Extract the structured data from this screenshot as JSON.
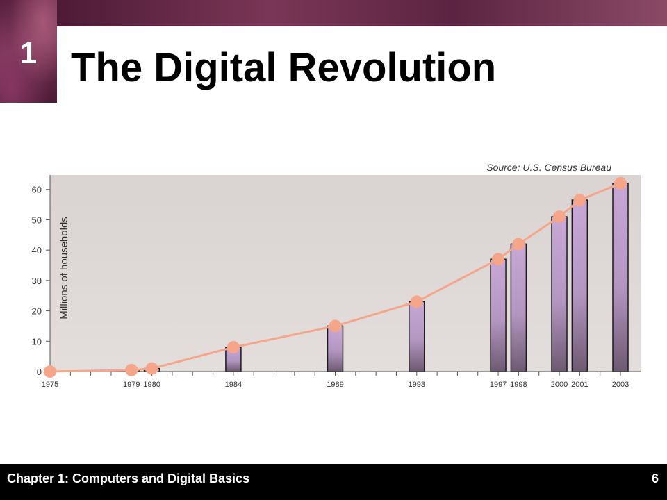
{
  "slide": {
    "chapter_number": "1",
    "title": "The Digital Revolution",
    "footer": "Chapter 1: Computers and Digital Basics",
    "page_number": "6"
  },
  "colors": {
    "bar": "#b79bc4",
    "line": "#f5a58a",
    "plot_bg": "#ddd6d4"
  },
  "chart_data": {
    "type": "bar",
    "source": "Source: U.S. Census Bureau",
    "ylabel": "Millions of households",
    "xlabel": "",
    "ylim": [
      0,
      62
    ],
    "yticks": [
      0,
      10,
      20,
      30,
      40,
      50,
      60
    ],
    "xlim": [
      1975,
      2003
    ],
    "categories": [
      "1975",
      "1979",
      "1980",
      "1984",
      "1989",
      "1993",
      "1997",
      "1998",
      "2000",
      "2001",
      "2003"
    ],
    "x": [
      1975,
      1979,
      1980,
      1984,
      1989,
      1993,
      1997,
      1998,
      2000,
      2001,
      2003
    ],
    "values": [
      0,
      0.5,
      1,
      8,
      15,
      23,
      37,
      42,
      51,
      56.5,
      62
    ],
    "overlay": "line with markers"
  }
}
